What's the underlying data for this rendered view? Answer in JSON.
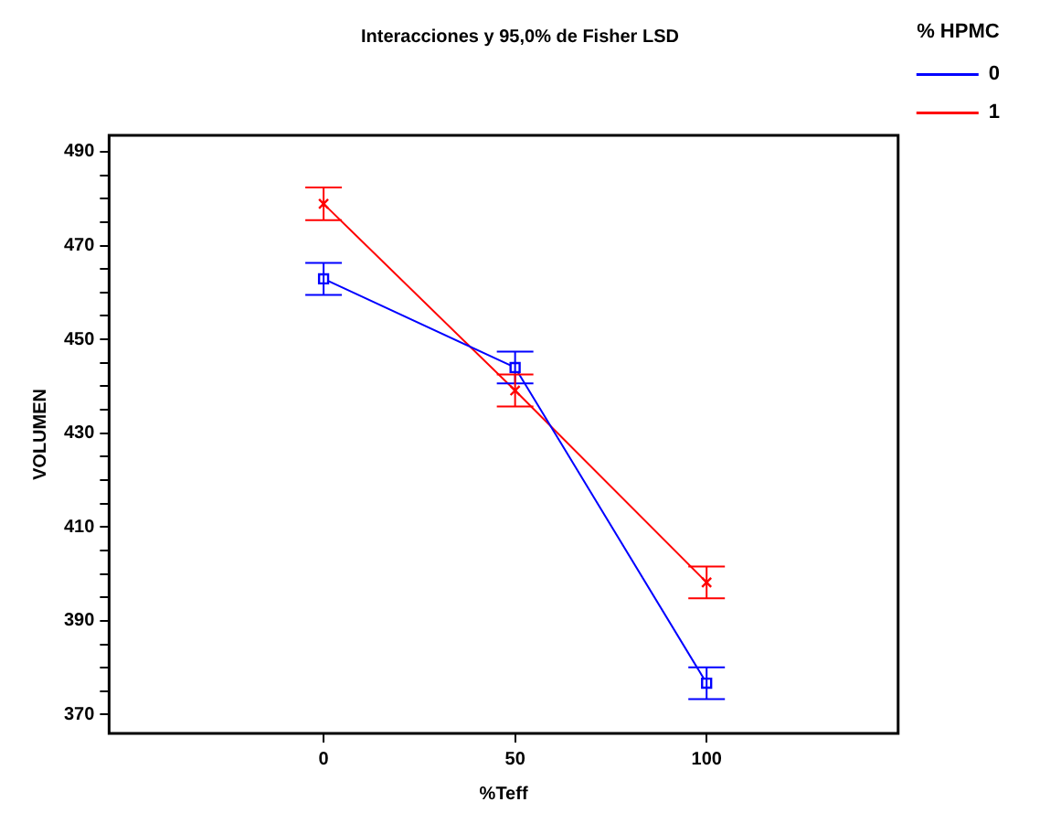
{
  "chart_data": {
    "type": "line",
    "title": "Interacciones y 95,0% de Fisher LSD",
    "xlabel": "%Teff",
    "ylabel": "VOLUMEN",
    "legend_title": "% HPMC",
    "x": [
      0,
      50,
      100
    ],
    "series": [
      {
        "name": "0",
        "color": "#0000ff",
        "marker": "square",
        "values": [
          462.9,
          444.0,
          376.7
        ],
        "errors": [
          3.4,
          3.4,
          3.4
        ]
      },
      {
        "name": "1",
        "color": "#ff0000",
        "marker": "cross",
        "values": [
          478.9,
          439.1,
          398.2
        ],
        "errors": [
          3.5,
          3.4,
          3.4
        ]
      }
    ],
    "xlim": [
      -56,
      150
    ],
    "xticks": [
      0,
      50,
      100
    ],
    "ylim": [
      366,
      493.5
    ],
    "yticks": [
      370,
      {
        "value": 375,
        "label": null
      },
      {
        "value": 380,
        "label": null
      },
      {
        "value": 385,
        "label": null
      },
      390,
      {
        "value": 395,
        "label": null
      },
      {
        "value": 400,
        "label": null
      },
      {
        "value": 405,
        "label": null
      },
      410,
      {
        "value": 415,
        "label": null
      },
      {
        "value": 420,
        "label": null
      },
      {
        "value": 425,
        "label": null
      },
      430,
      {
        "value": 435,
        "label": null
      },
      {
        "value": 440,
        "label": null
      },
      {
        "value": 445,
        "label": null
      },
      450,
      {
        "value": 455,
        "label": null
      },
      {
        "value": 460,
        "label": null
      },
      {
        "value": 465,
        "label": null
      },
      470,
      {
        "value": 475,
        "label": null
      },
      {
        "value": 480,
        "label": null
      },
      {
        "value": 485,
        "label": null
      },
      490
    ],
    "grid": false,
    "legend": "top right",
    "line_style": "solid"
  }
}
